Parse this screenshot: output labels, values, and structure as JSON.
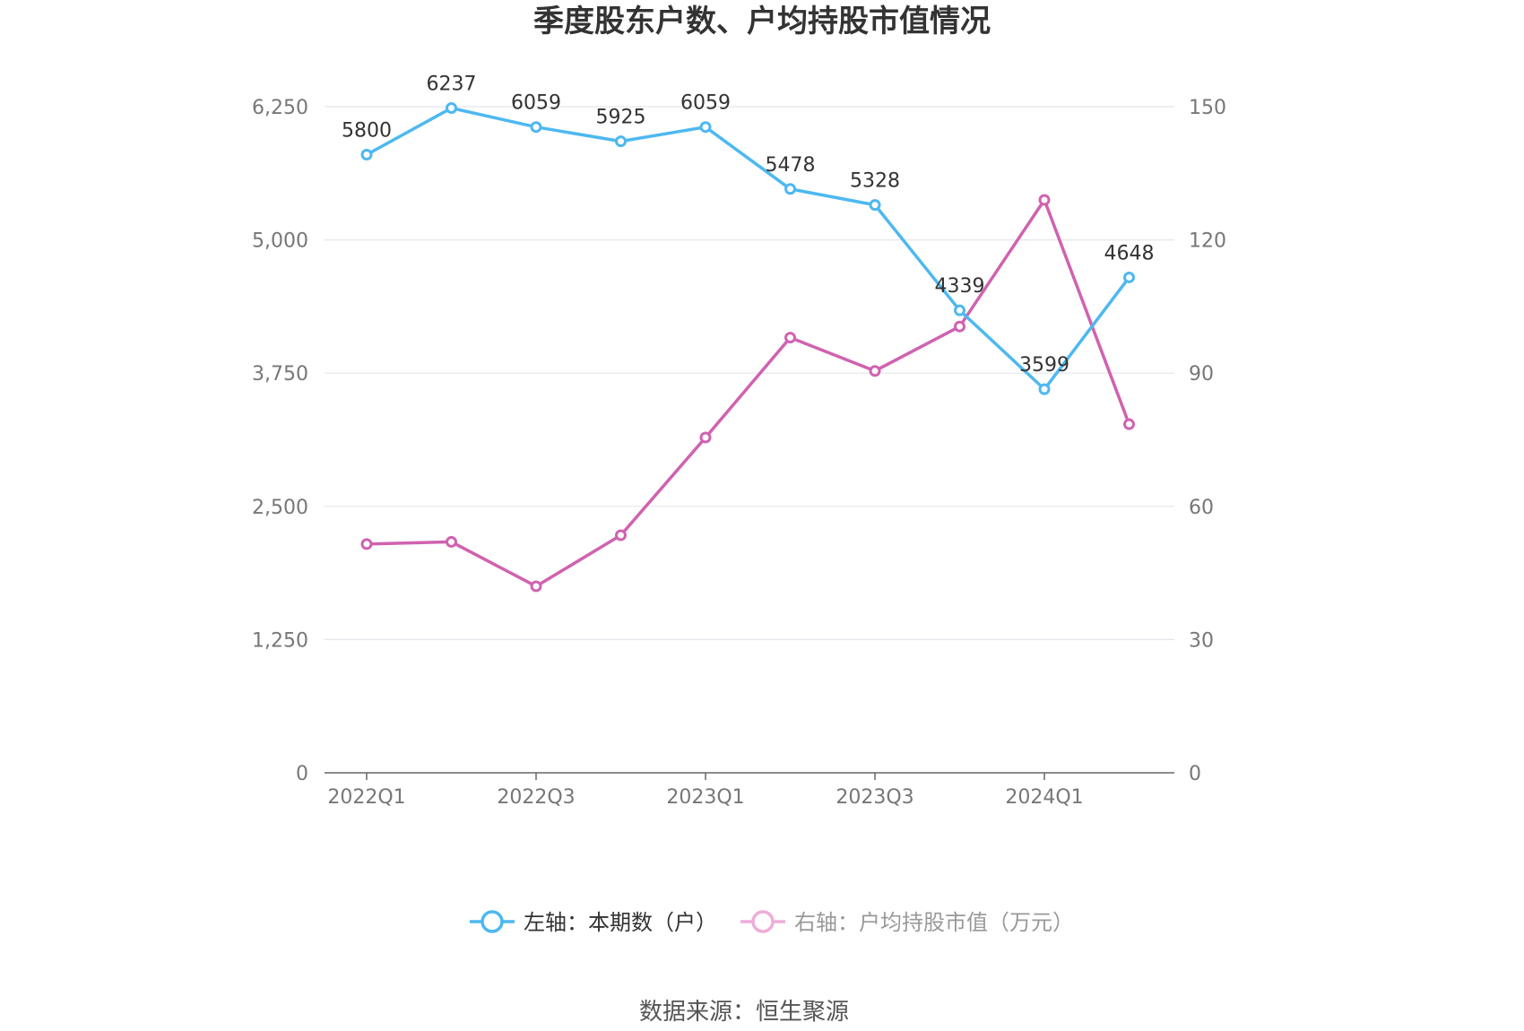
{
  "chart_data": {
    "type": "line",
    "title": "季度股东户数、户均持股市值情况",
    "source": "数据来源：恒生聚源",
    "categories": [
      "2022Q1",
      "2022Q2",
      "2022Q3",
      "2022Q4",
      "2023Q1",
      "2023Q2",
      "2023Q3",
      "2023Q4",
      "2024Q1",
      "2024Q2"
    ],
    "x_tick_labels": [
      "2022Q1",
      "2022Q3",
      "2023Q1",
      "2023Q3",
      "2024Q1"
    ],
    "left_axis": {
      "ylim": [
        0,
        6250
      ],
      "ticks": [
        "0",
        "1,250",
        "2,500",
        "3,750",
        "5,000",
        "6,250"
      ]
    },
    "right_axis": {
      "ylim": [
        0,
        150
      ],
      "ticks": [
        "0",
        "30",
        "60",
        "90",
        "120",
        "150"
      ]
    },
    "grid": true,
    "legend_position": "bottom",
    "series": [
      {
        "name": "左轴：本期数（户）",
        "axis": "left",
        "color": "#4db8f0",
        "values": [
          5800,
          6237,
          6059,
          5925,
          6059,
          5478,
          5328,
          4339,
          3599,
          4648
        ],
        "labels": [
          "5800",
          "6237",
          "6059",
          "5925",
          "6059",
          "5478",
          "5328",
          "4339",
          "3599",
          "4648"
        ]
      },
      {
        "name": "右轴：户均持股市值（万元）",
        "axis": "right",
        "color": "#d062b0",
        "values": [
          51.5,
          52.0,
          42.0,
          53.5,
          75.5,
          98.0,
          90.5,
          100.5,
          129.0,
          78.5
        ]
      }
    ]
  }
}
